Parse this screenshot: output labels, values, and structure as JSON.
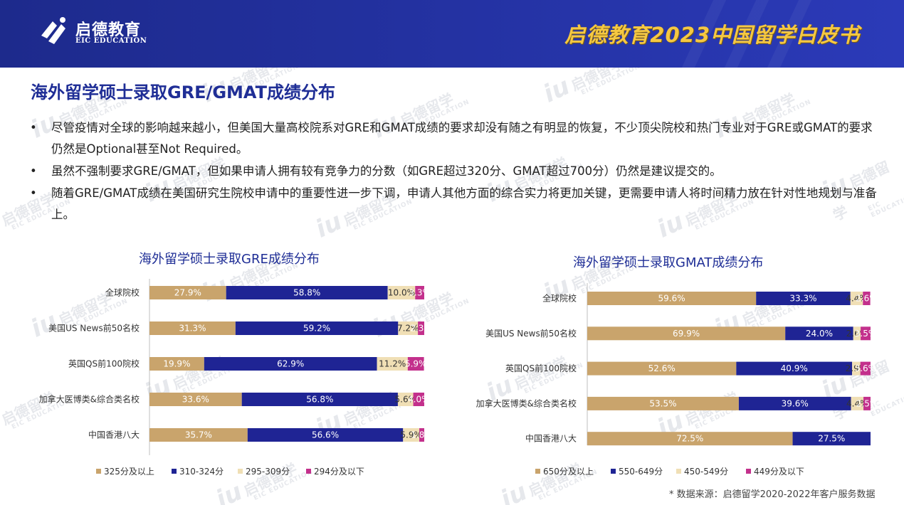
{
  "header": {
    "logo_cn": "启德教育",
    "logo_en": "EIC EDUCATION",
    "title": "启德教育2023中国留学白皮书"
  },
  "watermark": {
    "mark": "iu",
    "zh": "启德留学",
    "en": "EIC EDUCATION"
  },
  "page_title": "海外留学硕士录取GRE/GMAT成绩分布",
  "bullets": [
    {
      "dot": "•",
      "text": "尽管疫情对全球的影响越来越小，但美国大量高校院系对GRE和GMAT成绩的要求却没有随之有明显的恢复，不少顶尖院校和热门专业对于GRE或GMAT的要求仍然是Optional甚至Not Required。"
    },
    {
      "dot": "•",
      "text": "虽然不强制要求GRE/GMAT，但如果申请人拥有较有竞争力的分数（如GRE超过320分、GMAT超过700分）仍然是建议提交的。"
    },
    {
      "dot": "•",
      "text": "随着GRE/GMAT成绩在美国研究生院校申请中的重要性进一步下调，申请人其他方面的综合实力将更加关键，更需要申请人将时间精力放在针对性地规划与准备上。"
    }
  ],
  "colors": {
    "c1": "#c9a46c",
    "c2": "#1f2494",
    "c3": "#f0dfb5",
    "c4": "#c3308c"
  },
  "chart_data": [
    {
      "type": "bar",
      "stacked": true,
      "orientation": "horizontal",
      "title": "海外留学硕士录取GRE成绩分布",
      "categories": [
        "全球院校",
        "美国US News前50名校",
        "英国QS前100院校",
        "加拿大医博类&综合类名校",
        "中国香港八大"
      ],
      "series": [
        {
          "name": "325分及以上",
          "values": [
            27.9,
            31.3,
            19.9,
            33.6,
            35.7
          ],
          "labels": [
            "27.9%",
            "31.3%",
            "19.9%",
            "33.6%",
            "35.7%"
          ]
        },
        {
          "name": "310-324分",
          "values": [
            58.8,
            59.2,
            62.9,
            56.8,
            56.6
          ],
          "labels": [
            "58.8%",
            "59.2%",
            "62.9%",
            "56.8%",
            "56.6%"
          ]
        },
        {
          "name": "295-309分",
          "values": [
            10.0,
            7.2,
            11.2,
            5.6,
            5.9
          ],
          "labels": [
            "10.0%",
            "7.2%",
            "11.2%",
            "5.6%",
            "5.9%"
          ]
        },
        {
          "name": "294分及以下",
          "values": [
            3.3,
            2.3,
            5.9,
            4.0,
            1.8
          ],
          "labels": [
            "3.3%",
            "2.3%",
            "5.9%",
            "4.0%",
            "1.8%"
          ]
        }
      ],
      "xlim": [
        0,
        100
      ],
      "legend": "bottom"
    },
    {
      "type": "bar",
      "stacked": true,
      "orientation": "horizontal",
      "title": "海外留学硕士录取GMAT成绩分布",
      "categories": [
        "全球院校",
        "美国US News前50名校",
        "英国QS前100院校",
        "加拿大医博类&综合类名校",
        "中国香港八大"
      ],
      "series": [
        {
          "name": "650分及以上",
          "values": [
            59.6,
            69.9,
            52.6,
            53.5,
            72.5
          ],
          "labels": [
            "59.6%",
            "69.9%",
            "52.6%",
            "53.5%",
            "72.5%"
          ]
        },
        {
          "name": "550-649分",
          "values": [
            33.3,
            24.0,
            40.9,
            39.6,
            27.5
          ],
          "labels": [
            "33.3%",
            "24.0%",
            "40.9%",
            "39.6%",
            "27.5%"
          ]
        },
        {
          "name": "450-549分",
          "values": [
            4.4,
            2.6,
            2.9,
            4.4,
            0
          ],
          "labels": [
            "4.4%",
            "2.6%",
            "2.9%",
            "4.4%",
            ""
          ]
        },
        {
          "name": "449分及以下",
          "values": [
            2.6,
            3.5,
            3.6,
            2.5,
            0
          ],
          "labels": [
            "2.6%",
            "3.5%",
            "3.6%",
            "2.5%",
            ""
          ]
        }
      ],
      "xlim": [
        0,
        100
      ],
      "legend": "bottom"
    }
  ],
  "source": "* 数据来源：启德留学2020-2022年客户服务数据"
}
